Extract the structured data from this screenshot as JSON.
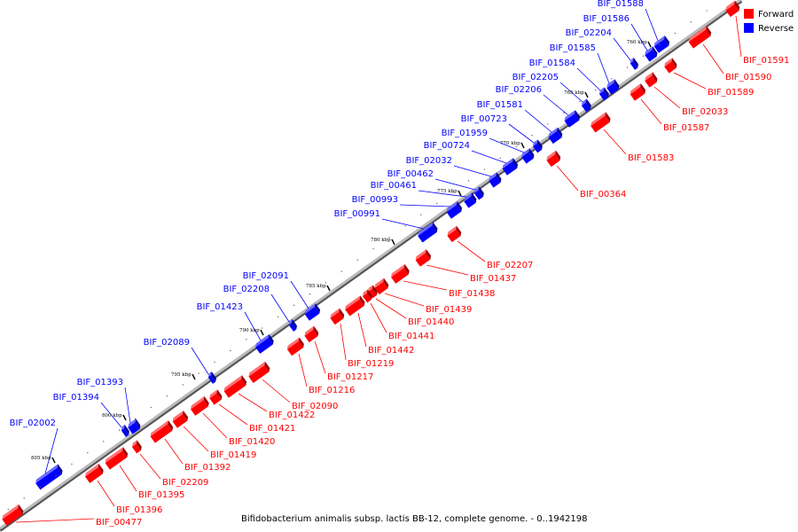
{
  "caption": "Bifidobacterium animalis subsp. lactis BB-12, complete genome. - 0..1942198",
  "legend": [
    {
      "label": "Forward",
      "color": "#ff0000"
    },
    {
      "label": "Reverse",
      "color": "#0000ff"
    }
  ],
  "colors": {
    "forward": "#ff0000",
    "reverse": "#0000ff",
    "backbone": "#888888",
    "tick": "#000000"
  },
  "ticks": [
    "760 kbp",
    "765 kbp",
    "770 kbp",
    "775 kbp",
    "780 kbp",
    "785 kbp",
    "790 kbp",
    "795 kbp",
    "800 kbp",
    "805 kbp"
  ],
  "genes_forward": [
    "BIF_01591",
    "BIF_01590",
    "BIF_01589",
    "BIF_02033",
    "BIF_01587",
    "BIF_01583",
    "BIF_00364",
    "BIF_02207",
    "BIF_01437",
    "BIF_01438",
    "BIF_01439",
    "BIF_01440",
    "BIF_01441",
    "BIF_01442",
    "BIF_01219",
    "BIF_01217",
    "BIF_01216",
    "BIF_02090",
    "BIF_01422",
    "BIF_01421",
    "BIF_01420",
    "BIF_01419",
    "BIF_01392",
    "BIF_02209",
    "BIF_01395",
    "BIF_01396",
    "BIF_00477"
  ],
  "genes_reverse": [
    "BIF_01588",
    "BIF_01586",
    "BIF_02204",
    "BIF_01585",
    "BIF_01584",
    "BIF_02205",
    "BIF_02206",
    "BIF_01581",
    "BIF_00723",
    "BIF_01959",
    "BIF_00724",
    "BIF_02032",
    "BIF_00462",
    "BIF_00461",
    "BIF_00993",
    "BIF_00991",
    "BIF_02091",
    "BIF_02208",
    "BIF_01423",
    "BIF_02089",
    "BIF_01393",
    "BIF_01394",
    "BIF_02002"
  ]
}
